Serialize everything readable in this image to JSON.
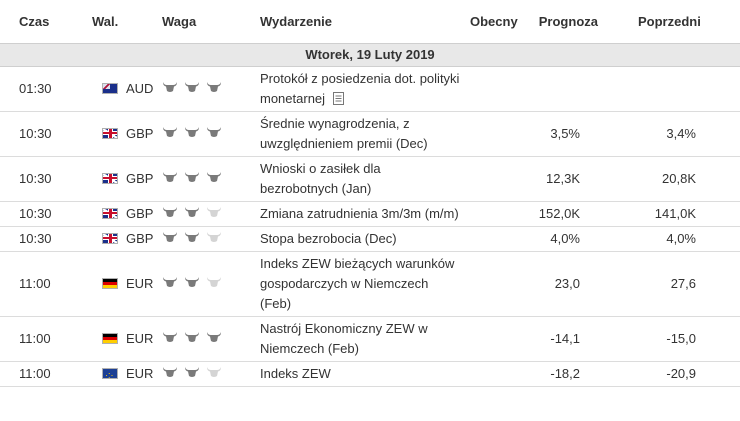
{
  "headers": {
    "time": "Czas",
    "currency": "Wal.",
    "importance": "Waga",
    "event": "Wydarzenie",
    "actual": "Obecny",
    "forecast": "Prognoza",
    "previous": "Poprzedni"
  },
  "date_label": "Wtorek, 19 Luty 2019",
  "colors": {
    "bull_active": "#7a7a7a",
    "bull_inactive": "#d4d4d4",
    "date_bg": "#e8e8e8"
  },
  "events": [
    {
      "time": "01:30",
      "flag": "australia-flag-icon",
      "currency": "AUD",
      "importance": 3,
      "event": "Protokół z posiedzenia dot. polityki monetarnej",
      "has_doc_icon": true,
      "actual": "",
      "forecast": "",
      "previous": ""
    },
    {
      "time": "10:30",
      "flag": "uk-flag-icon",
      "currency": "GBP",
      "importance": 3,
      "event": "Średnie wynagrodzenia, z uwzględnieniem premii (Dec)",
      "has_doc_icon": false,
      "actual": "",
      "forecast": "3,5%",
      "previous": "3,4%"
    },
    {
      "time": "10:30",
      "flag": "uk-flag-icon",
      "currency": "GBP",
      "importance": 3,
      "event": "Wnioski o zasiłek dla bezrobotnych (Jan)",
      "has_doc_icon": false,
      "actual": "",
      "forecast": "12,3K",
      "previous": "20,8K"
    },
    {
      "time": "10:30",
      "flag": "uk-flag-icon",
      "currency": "GBP",
      "importance": 2,
      "event": "Zmiana zatrudnienia 3m/3m (m/m)",
      "has_doc_icon": false,
      "actual": "",
      "forecast": "152,0K",
      "previous": "141,0K"
    },
    {
      "time": "10:30",
      "flag": "uk-flag-icon",
      "currency": "GBP",
      "importance": 2,
      "event": "Stopa bezrobocia (Dec)",
      "has_doc_icon": false,
      "actual": "",
      "forecast": "4,0%",
      "previous": "4,0%"
    },
    {
      "time": "11:00",
      "flag": "germany-flag-icon",
      "currency": "EUR",
      "importance": 2,
      "event": "Indeks ZEW bieżących warunków gospodarczych w Niemczech (Feb)",
      "has_doc_icon": false,
      "actual": "",
      "forecast": "23,0",
      "previous": "27,6"
    },
    {
      "time": "11:00",
      "flag": "germany-flag-icon",
      "currency": "EUR",
      "importance": 3,
      "event": "Nastrój Ekonomiczny ZEW w Niemczech (Feb)",
      "has_doc_icon": false,
      "actual": "",
      "forecast": "-14,1",
      "previous": "-15,0"
    },
    {
      "time": "11:00",
      "flag": "eu-flag-icon",
      "currency": "EUR",
      "importance": 2,
      "event": "Indeks ZEW",
      "has_doc_icon": false,
      "actual": "",
      "forecast": "-18,2",
      "previous": "-20,9"
    }
  ]
}
